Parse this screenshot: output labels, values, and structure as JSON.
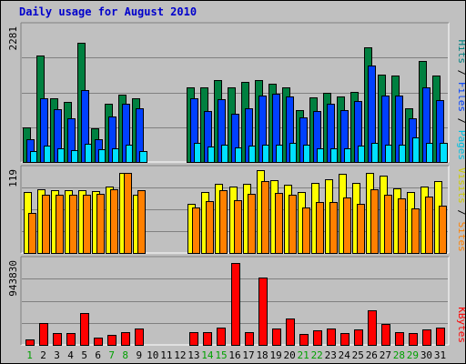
{
  "chart_data": {
    "type": "bar",
    "title": "Daily usage for August 2010",
    "days": [
      "1",
      "2",
      "3",
      "4",
      "5",
      "6",
      "7",
      "8",
      "9",
      "10",
      "11",
      "12",
      "13",
      "14",
      "15",
      "16",
      "17",
      "18",
      "19",
      "20",
      "21",
      "22",
      "23",
      "24",
      "25",
      "26",
      "27",
      "28",
      "29",
      "30",
      "31"
    ],
    "weekend_days": [
      "1",
      "7",
      "8",
      "14",
      "15",
      "21",
      "22",
      "28",
      "29"
    ],
    "panels": [
      {
        "id": "hits",
        "max_label": "2281",
        "ymax": 2281,
        "legend": [
          "Pages",
          "Files",
          "Hits"
        ],
        "series": [
          {
            "name": "Hits",
            "color": "#008040",
            "values": [
              590,
              1820,
              1090,
              1020,
              2040,
              580,
              990,
              1150,
              1090,
              null,
              null,
              null,
              1270,
              1270,
              1400,
              1270,
              1370,
              1400,
              1340,
              1270,
              890,
              1100,
              1180,
              1120,
              1190,
              1950,
              1490,
              1480,
              920,
              1720,
              1470
            ]
          },
          {
            "name": "Files",
            "color": "#0040ff",
            "values": [
              390,
              1080,
              900,
              750,
              1220,
              390,
              780,
              1000,
              920,
              null,
              null,
              null,
              1090,
              870,
              1070,
              820,
              920,
              1140,
              1170,
              1110,
              760,
              870,
              1000,
              890,
              1040,
              1640,
              1140,
              1130,
              740,
              1280,
              1050
            ]
          },
          {
            "name": "Pages",
            "color": "#00e0ff",
            "values": [
              190,
              280,
              230,
              200,
              310,
              220,
              240,
              290,
              190,
              null,
              null,
              null,
              330,
              270,
              300,
              250,
              280,
              290,
              300,
              330,
              290,
              240,
              240,
              240,
              280,
              330,
              290,
              300,
              420,
              330,
              330
            ]
          }
        ]
      },
      {
        "id": "visits",
        "max_label": "119",
        "ymax": 119,
        "legend": [
          "Sites",
          "Visits"
        ],
        "series": [
          {
            "name": "Visits",
            "color": "#ffff00",
            "values": [
              89,
              92,
              91,
              91,
              91,
              90,
              96,
              117,
              85,
              null,
              null,
              null,
              72,
              88,
              101,
              97,
              101,
              120,
              106,
              99,
              89,
              102,
              107,
              115,
              102,
              116,
              113,
              94,
              89,
              96,
              104
            ]
          },
          {
            "name": "Sites",
            "color": "#ff8000",
            "values": [
              58,
              84,
              84,
              84,
              84,
              86,
              93,
              117,
              91,
              null,
              null,
              null,
              66,
              76,
              91,
              77,
              86,
              104,
              87,
              85,
              66,
              74,
              74,
              80,
              71,
              92,
              85,
              79,
              65,
              82,
              69
            ]
          }
        ]
      },
      {
        "id": "kbytes",
        "max_label": "943830",
        "ymax": 943830,
        "legend": [
          "KBytes"
        ],
        "series": [
          {
            "name": "KBytes",
            "color": "#ff0000",
            "values": [
              60000,
              250000,
              130000,
              140000,
              360000,
              80000,
              110000,
              150000,
              190000,
              null,
              null,
              null,
              150000,
              150000,
              200000,
              930000,
              150000,
              770000,
              190000,
              300000,
              120000,
              170000,
              190000,
              130000,
              180000,
              390000,
              240000,
              150000,
              130000,
              180000,
              200000
            ]
          }
        ]
      }
    ]
  }
}
